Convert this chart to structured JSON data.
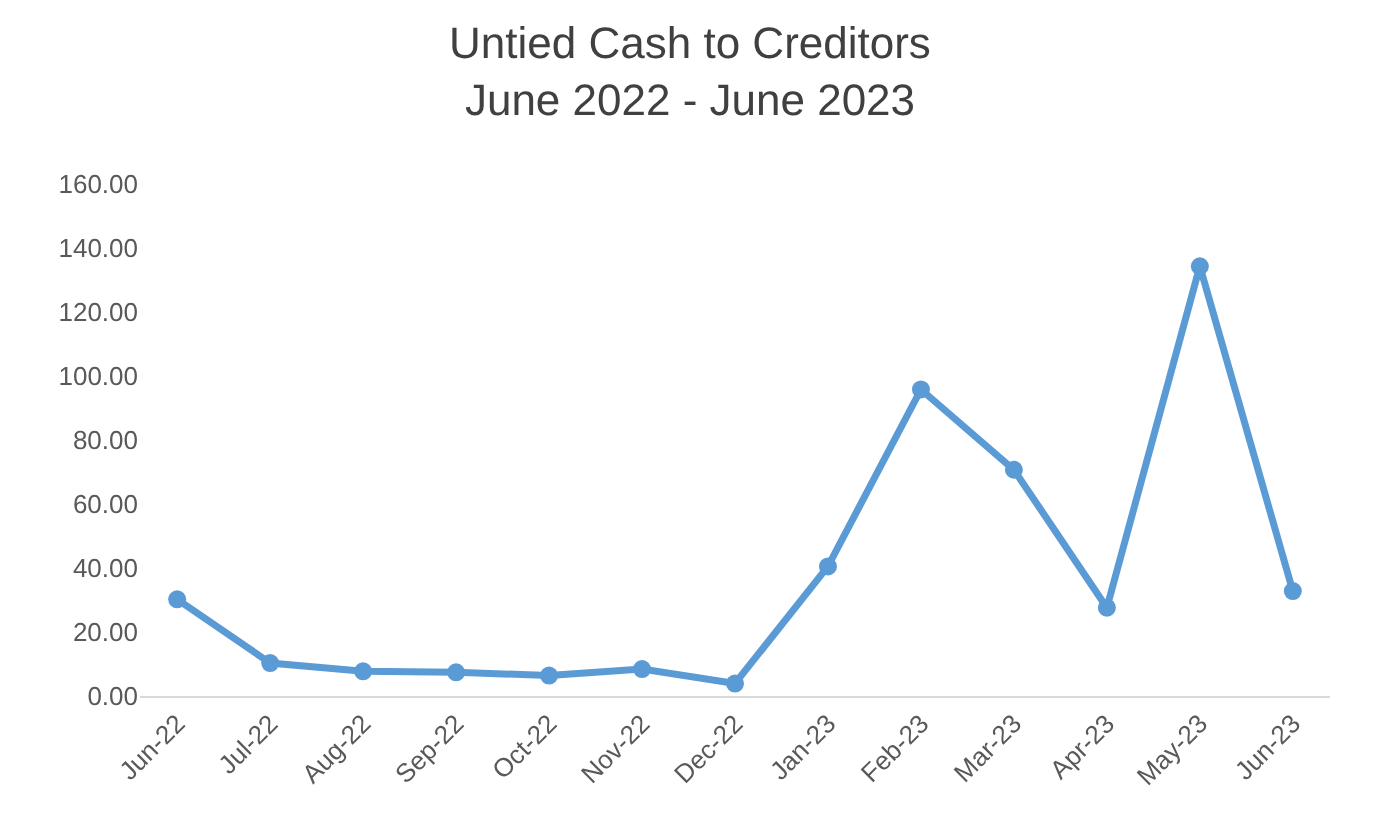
{
  "chart_data": {
    "type": "line",
    "title": "Untied Cash to Creditors",
    "subtitle": "June 2022 - June 2023",
    "categories": [
      "Jun-22",
      "Jul-22",
      "Aug-22",
      "Sep-22",
      "Oct-22",
      "Nov-22",
      "Dec-22",
      "Jan-23",
      "Feb-23",
      "Mar-23",
      "Apr-23",
      "May-23",
      "Jun-23"
    ],
    "series": [
      {
        "color": "#5b9bd5",
        "values": [
          30.2,
          10.3,
          7.7,
          7.4,
          6.4,
          8.4,
          3.9,
          40.5,
          95.8,
          70.7,
          27.6,
          134.3,
          32.8
        ]
      }
    ],
    "ylim": [
      0,
      160
    ],
    "yticks": [
      {
        "value": 0,
        "label": "0.00"
      },
      {
        "value": 20,
        "label": "20.00"
      },
      {
        "value": 40,
        "label": "40.00"
      },
      {
        "value": 60,
        "label": "60.00"
      },
      {
        "value": 80,
        "label": "80.00"
      },
      {
        "value": 100,
        "label": "100.00"
      },
      {
        "value": 120,
        "label": "120.00"
      },
      {
        "value": 140,
        "label": "140.00"
      },
      {
        "value": 160,
        "label": "160.00"
      }
    ],
    "grid": false,
    "legend": false,
    "marker": "circle",
    "line_style": "solid"
  }
}
